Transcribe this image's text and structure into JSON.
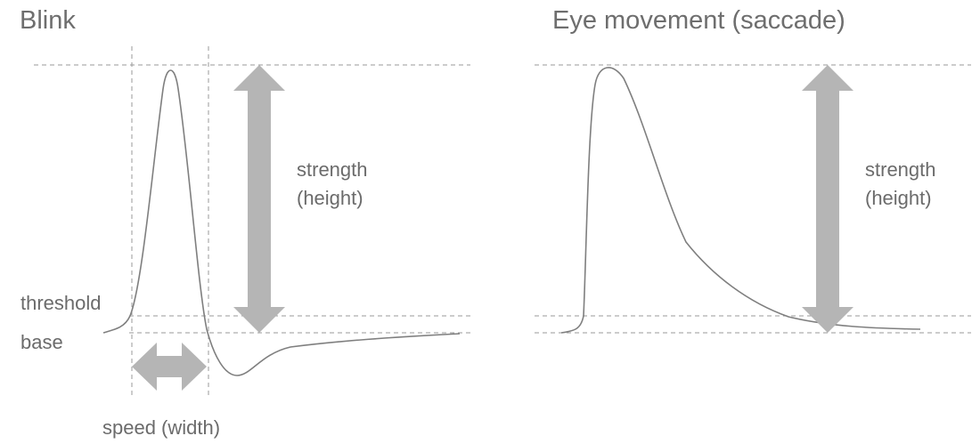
{
  "blink": {
    "title": "Blink",
    "strength_label_line1": "strength",
    "strength_label_line2": "(height)",
    "threshold_label": "threshold",
    "base_label": "base",
    "speed_label": "speed (width)"
  },
  "saccade": {
    "title": "Eye movement (saccade)",
    "strength_label_line1": "strength",
    "strength_label_line2": "(height)"
  },
  "colors": {
    "curve": "#7f7f7f",
    "arrow": "#b5b5b5",
    "guide": "#9a9a9a",
    "text": "#6b6b6b"
  }
}
